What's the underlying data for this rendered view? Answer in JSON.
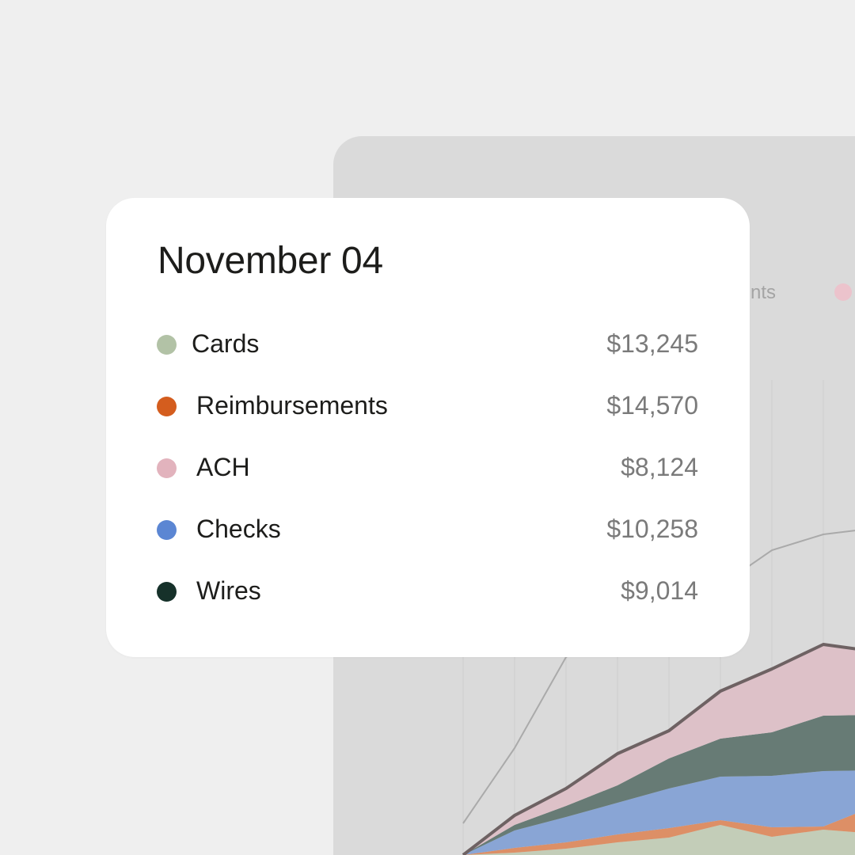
{
  "tooltip": {
    "date": "November 04",
    "rows": [
      {
        "label": "Cards",
        "value": "$13,245",
        "color": "#b2c2a6"
      },
      {
        "label": "Reimbursements",
        "value": "$14,570",
        "color": "#d45d1e"
      },
      {
        "label": "ACH",
        "value": "$8,124",
        "color": "#e2b3bd"
      },
      {
        "label": "Checks",
        "value": "$10,258",
        "color": "#5b86d3"
      },
      {
        "label": "Wires",
        "value": "$9,014",
        "color": "#16312a"
      }
    ]
  },
  "background_legend": {
    "partial_text": "nts",
    "dot_color": "#ecc3cc"
  },
  "chart_data": {
    "type": "area",
    "stacked": true,
    "series": [
      {
        "name": "Cards",
        "color": "#c3cdb8",
        "values": [
          0,
          3,
          8,
          16,
          22,
          38,
          23,
          32,
          27,
          30
        ]
      },
      {
        "name": "Reimbursements",
        "color": "#dd8f66",
        "values": [
          0,
          6,
          8,
          10,
          12,
          6,
          12,
          4,
          35,
          30
        ]
      },
      {
        "name": "Checks",
        "color": "#89a5d5",
        "values": [
          0,
          22,
          32,
          40,
          50,
          55,
          65,
          70,
          45,
          40
        ]
      },
      {
        "name": "Wires",
        "color": "#677b75",
        "values": [
          0,
          7,
          14,
          22,
          38,
          48,
          55,
          70,
          70,
          60
        ]
      },
      {
        "name": "ACH",
        "color": "#ddc1c8",
        "values": [
          0,
          12,
          22,
          40,
          35,
          60,
          80,
          90,
          80,
          80
        ]
      }
    ],
    "total_line_color": "#6e6263",
    "reference_line_color": "#aaaaaa",
    "reference_line": [
      0,
      95,
      210,
      250,
      282,
      300,
      345,
      365,
      373,
      380
    ],
    "gridlines": true
  }
}
